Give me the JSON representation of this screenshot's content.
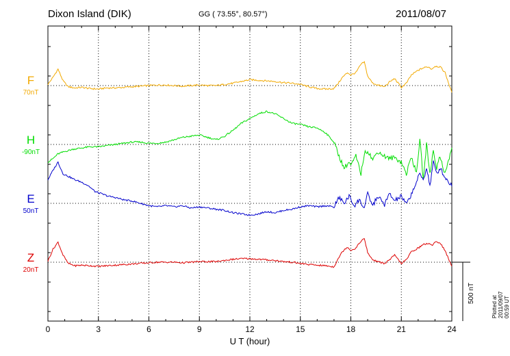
{
  "header": {
    "station": "Dixon Island (DIK)",
    "coords": "GG ( 73.55°,  80.57°)",
    "date": "2011/08/07"
  },
  "footer": {
    "plotted": "Plotted at 2011/09/07 00:59 UT",
    "scale": "500 nT"
  },
  "colors": {
    "F": "#f2a900",
    "H": "#00dd00",
    "E": "#0000cc",
    "Z": "#dd0000"
  },
  "chart_data": {
    "type": "line",
    "xlabel": "U T (hour)",
    "xlim": [
      0,
      24
    ],
    "xticks": [
      "0",
      "3",
      "6",
      "9",
      "12",
      "15",
      "18",
      "21",
      "24"
    ],
    "grid": true,
    "scale_bar_nT": 500,
    "channels": [
      {
        "name": "F",
        "offset": "70nT"
      },
      {
        "name": "H",
        "offset": "-90nT"
      },
      {
        "name": "E",
        "offset": "50nT"
      },
      {
        "name": "Z",
        "offset": "20nT"
      }
    ],
    "series": [
      {
        "name": "F",
        "x": [
          0,
          0.3,
          0.6,
          0.9,
          1.2,
          1.6,
          2,
          2.5,
          3,
          3.5,
          4,
          4.5,
          5,
          5.5,
          6,
          6.5,
          7,
          7.5,
          8,
          8.5,
          9,
          9.5,
          10,
          10.5,
          11,
          11.5,
          12,
          12.5,
          13,
          13.5,
          14,
          14.5,
          15,
          15.5,
          16,
          16.5,
          17,
          17.2,
          17.5,
          17.8,
          18,
          18.3,
          18.6,
          18.8,
          19,
          19.3,
          19.7,
          20,
          20.3,
          20.6,
          21,
          21.3,
          21.6,
          22,
          22.3,
          22.6,
          22.8,
          23,
          23.3,
          23.6,
          24
        ],
        "y": [
          10,
          70,
          140,
          40,
          -10,
          -20,
          -15,
          -25,
          -30,
          -20,
          -20,
          -15,
          -10,
          -5,
          0,
          5,
          5,
          0,
          -5,
          0,
          5,
          0,
          0,
          10,
          20,
          35,
          50,
          45,
          40,
          35,
          25,
          20,
          10,
          -10,
          -25,
          -30,
          -25,
          10,
          70,
          110,
          90,
          110,
          180,
          200,
          80,
          20,
          0,
          -10,
          30,
          60,
          -15,
          20,
          90,
          130,
          150,
          160,
          140,
          165,
          160,
          110,
          -60
        ]
      },
      {
        "name": "H",
        "x": [
          0,
          0.3,
          0.6,
          1,
          1.5,
          2,
          2.5,
          3,
          3.5,
          4,
          4.5,
          5,
          5.5,
          6,
          6.5,
          7,
          7.5,
          8,
          8.5,
          9,
          9.5,
          10,
          10.5,
          11,
          11.5,
          12,
          12.5,
          13,
          13.5,
          14,
          14.5,
          15,
          15.5,
          16,
          16.5,
          17,
          17.3,
          17.6,
          17.9,
          18,
          18.3,
          18.6,
          18.8,
          19,
          19.3,
          19.6,
          20,
          20.3,
          20.6,
          21,
          21.3,
          21.6,
          21.9,
          22.1,
          22.3,
          22.5,
          22.7,
          22.9,
          23.1,
          23.3,
          23.6,
          24
        ],
        "y": [
          -150,
          -120,
          -80,
          -60,
          -40,
          -30,
          -20,
          -20,
          -10,
          0,
          10,
          20,
          20,
          10,
          10,
          20,
          40,
          60,
          70,
          80,
          60,
          40,
          70,
          120,
          180,
          220,
          260,
          280,
          260,
          220,
          180,
          170,
          150,
          140,
          100,
          20,
          -100,
          -200,
          -150,
          -180,
          -100,
          -250,
          -80,
          -50,
          -130,
          -60,
          -100,
          -120,
          -110,
          -150,
          -250,
          -100,
          -250,
          50,
          -300,
          0,
          -250,
          -50,
          -200,
          -100,
          -250,
          -30
        ]
      },
      {
        "name": "E",
        "x": [
          0,
          0.3,
          0.6,
          0.9,
          1.2,
          1.6,
          2,
          2.4,
          2.8,
          3.2,
          3.6,
          4,
          4.5,
          5,
          5.5,
          6,
          6.5,
          7,
          7.5,
          8,
          8.5,
          9,
          9.5,
          10,
          10.5,
          11,
          11.5,
          12,
          12.5,
          13,
          13.5,
          14,
          14.5,
          15,
          15.5,
          16,
          16.5,
          17,
          17.3,
          17.6,
          17.9,
          18.2,
          18.5,
          18.8,
          19,
          19.3,
          19.6,
          20,
          20.3,
          20.6,
          21,
          21.3,
          21.6,
          21.9,
          22.1,
          22.3,
          22.5,
          22.7,
          22.9,
          23.1,
          23.3,
          23.6,
          24
        ],
        "y": [
          200,
          280,
          350,
          250,
          230,
          200,
          180,
          150,
          100,
          80,
          60,
          50,
          30,
          20,
          0,
          -20,
          -30,
          -20,
          -30,
          -20,
          -40,
          -30,
          -40,
          -50,
          -60,
          -80,
          -90,
          -100,
          -90,
          -70,
          -80,
          -60,
          -50,
          -30,
          -20,
          -30,
          -20,
          -30,
          50,
          0,
          60,
          -20,
          30,
          -40,
          80,
          -20,
          60,
          -10,
          80,
          20,
          60,
          -10,
          80,
          180,
          250,
          200,
          300,
          150,
          350,
          250,
          300,
          220,
          150
        ]
      },
      {
        "name": "Z",
        "x": [
          0,
          0.3,
          0.6,
          0.9,
          1.2,
          1.6,
          2,
          2.5,
          3,
          3.5,
          4,
          4.5,
          5,
          5.5,
          6,
          6.5,
          7,
          7.5,
          8,
          8.5,
          9,
          9.5,
          10,
          10.5,
          11,
          11.5,
          12,
          12.5,
          13,
          13.5,
          14,
          14.5,
          15,
          15.5,
          16,
          16.5,
          17,
          17.2,
          17.5,
          17.8,
          18,
          18.3,
          18.6,
          18.8,
          19,
          19.3,
          19.7,
          20,
          20.3,
          20.6,
          21,
          21.3,
          21.6,
          22,
          22.3,
          22.6,
          22.8,
          23,
          23.3,
          23.6,
          24
        ],
        "y": [
          10,
          110,
          170,
          60,
          -10,
          -30,
          -25,
          -30,
          -35,
          -30,
          -25,
          -20,
          -15,
          -10,
          -5,
          0,
          0,
          0,
          -5,
          0,
          5,
          5,
          5,
          15,
          25,
          30,
          30,
          25,
          20,
          15,
          5,
          0,
          -10,
          -20,
          -25,
          -30,
          -40,
          20,
          90,
          130,
          100,
          120,
          180,
          200,
          80,
          20,
          0,
          -10,
          20,
          60,
          -10,
          20,
          90,
          120,
          150,
          160,
          140,
          175,
          165,
          100,
          -40
        ]
      }
    ]
  }
}
